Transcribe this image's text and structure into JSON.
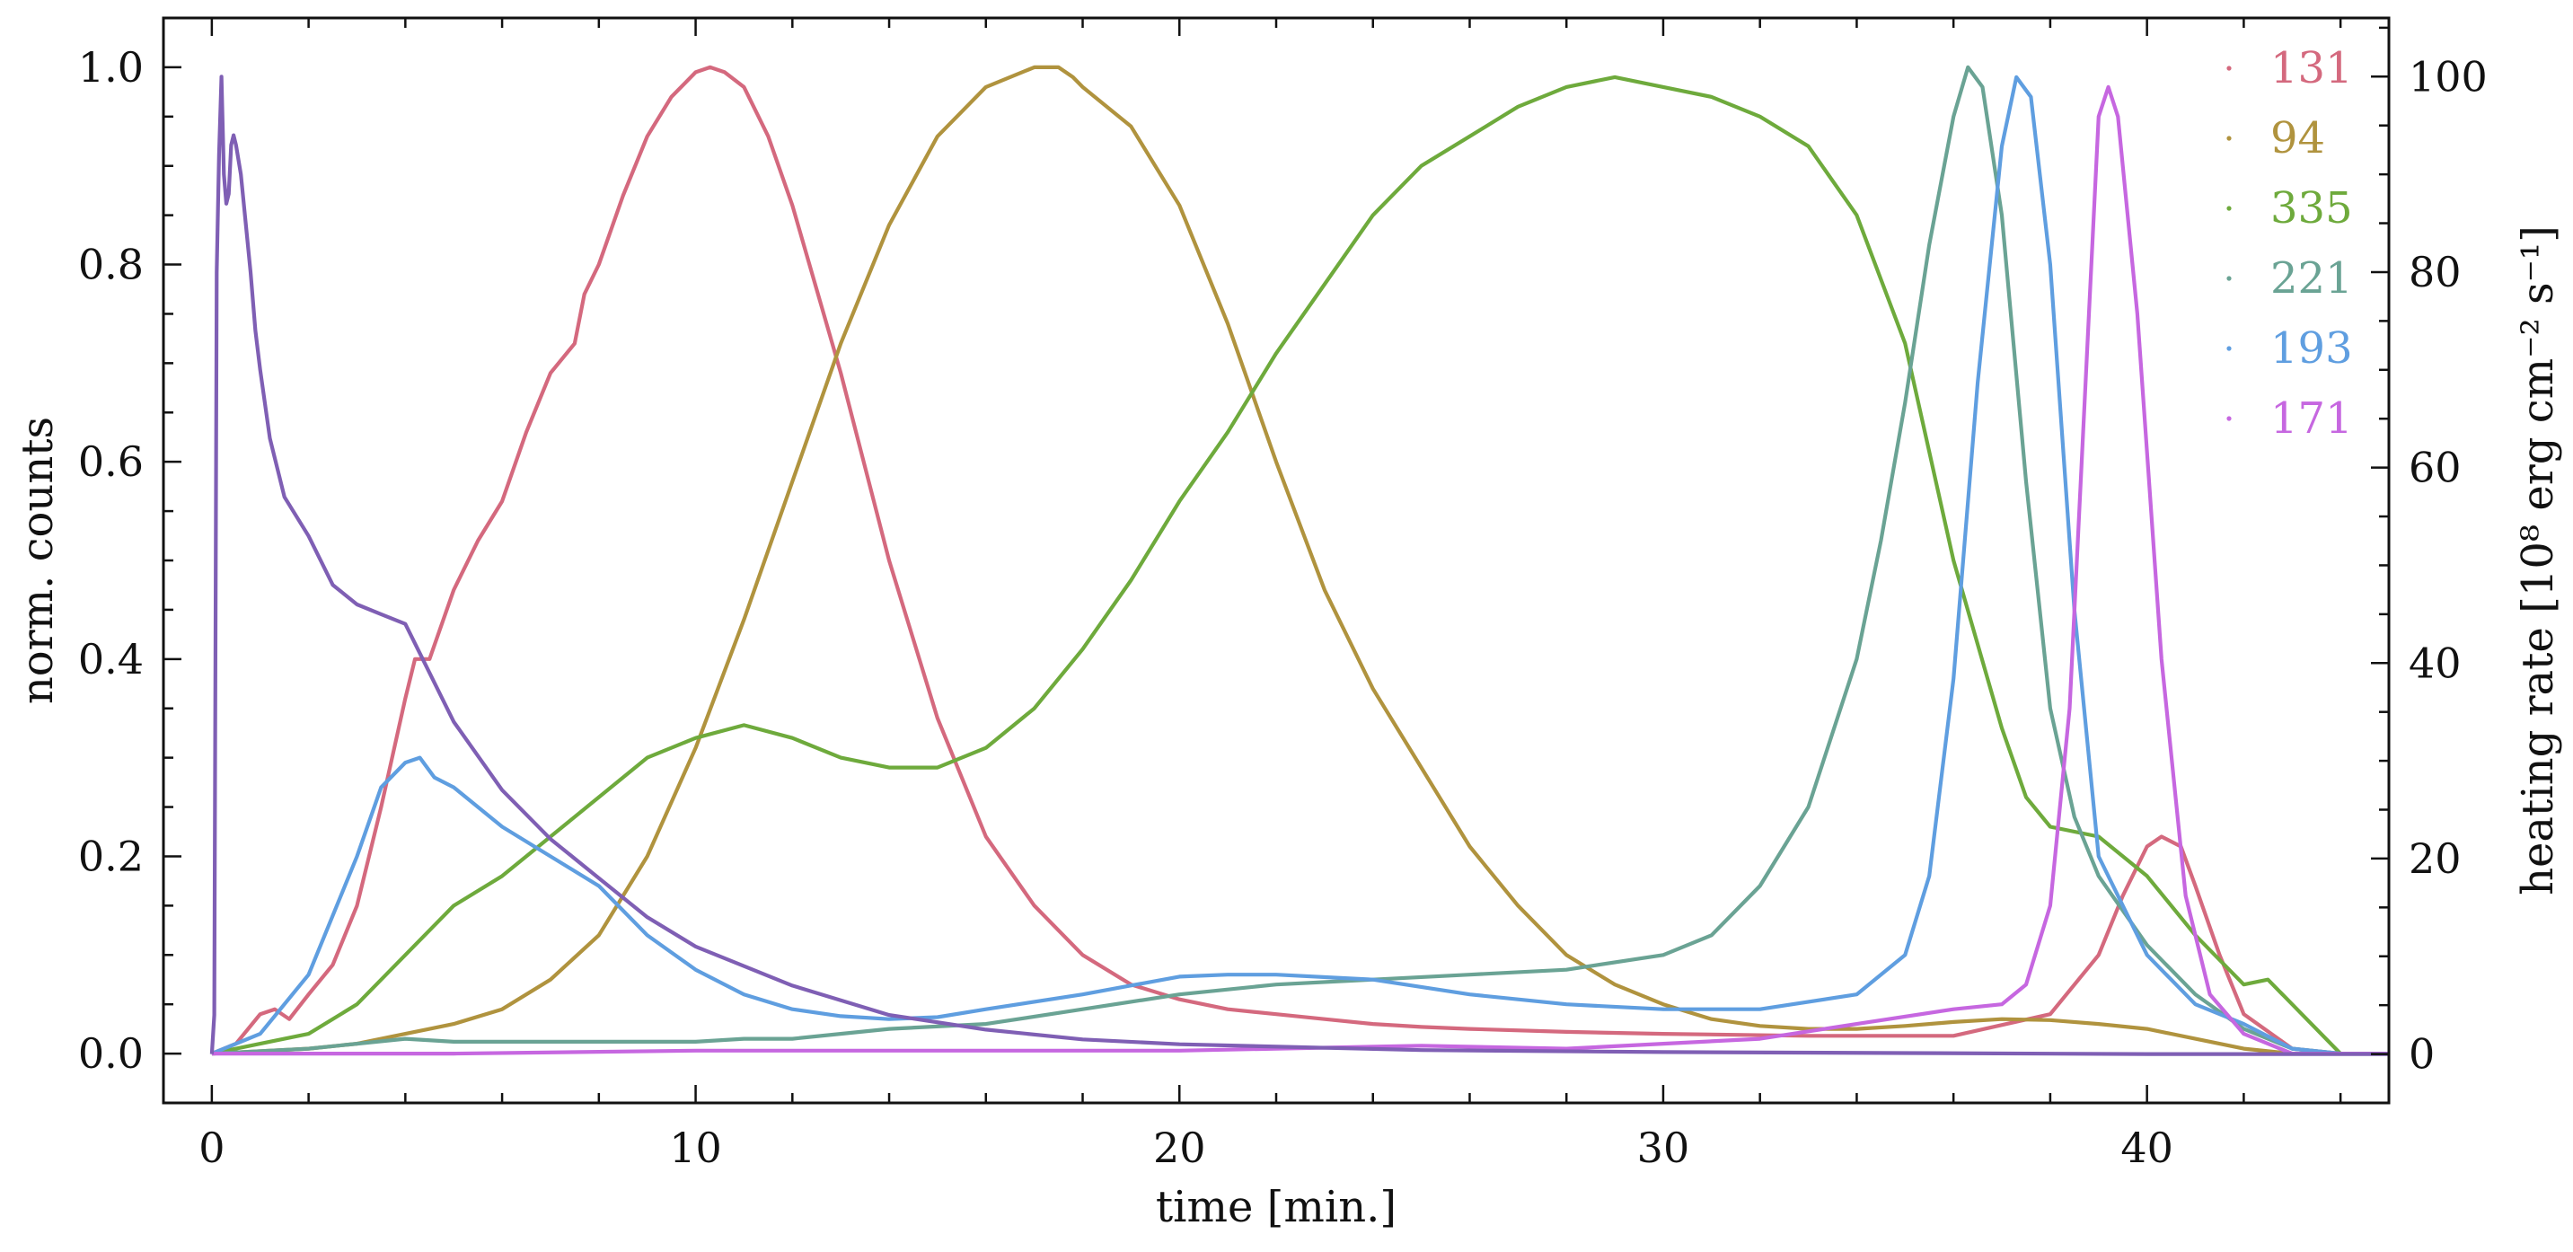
{
  "chart_data": {
    "type": "line",
    "title": "",
    "xlabel": "time [min.]",
    "ylabel": "norm. counts",
    "y2label": "heating rate [10⁸ erg cm⁻² s⁻¹]",
    "xlim": [
      -1,
      45
    ],
    "ylim": [
      -0.05,
      1.05
    ],
    "y2lim": [
      -5,
      106
    ],
    "xticks": [
      0,
      10,
      20,
      30,
      40
    ],
    "xtick_labels": [
      "0",
      "10",
      "20",
      "30",
      "40"
    ],
    "yticks": [
      0.0,
      0.2,
      0.4,
      0.6,
      0.8,
      1.0
    ],
    "ytick_labels": [
      "0.0",
      "0.2",
      "0.4",
      "0.6",
      "0.8",
      "1.0"
    ],
    "y2ticks": [
      0,
      20,
      40,
      60,
      80,
      100
    ],
    "y2tick_labels": [
      "0",
      "20",
      "40",
      "60",
      "80",
      "100"
    ],
    "grid": false,
    "legend_position": "top-right",
    "heating_color": "#7f5fb4",
    "series": [
      {
        "name": "131",
        "color": "#d4697e",
        "x": [
          0,
          0.5,
          1,
          1.3,
          1.6,
          2,
          2.5,
          3,
          3.5,
          4,
          4.2,
          4.5,
          5,
          5.5,
          6,
          6.5,
          7,
          7.5,
          7.7,
          8,
          8.5,
          9,
          9.5,
          10,
          10.3,
          10.6,
          11,
          11.5,
          12,
          13,
          14,
          15,
          16,
          17,
          18,
          19,
          20,
          21,
          22,
          23,
          24,
          25,
          26,
          28,
          30,
          33,
          36,
          38,
          39,
          39.5,
          40,
          40.3,
          40.7,
          41,
          41.5,
          42,
          43,
          44,
          45
        ],
        "y": [
          0,
          0.01,
          0.04,
          0.045,
          0.035,
          0.06,
          0.09,
          0.15,
          0.25,
          0.36,
          0.4,
          0.4,
          0.47,
          0.52,
          0.56,
          0.63,
          0.69,
          0.72,
          0.77,
          0.8,
          0.87,
          0.93,
          0.97,
          0.995,
          1.0,
          0.995,
          0.98,
          0.93,
          0.86,
          0.69,
          0.5,
          0.34,
          0.22,
          0.15,
          0.1,
          0.07,
          0.055,
          0.045,
          0.04,
          0.035,
          0.03,
          0.027,
          0.025,
          0.022,
          0.02,
          0.018,
          0.018,
          0.04,
          0.1,
          0.16,
          0.21,
          0.22,
          0.21,
          0.17,
          0.1,
          0.04,
          0.005,
          0,
          0
        ]
      },
      {
        "name": "94",
        "color": "#b0933e",
        "x": [
          0,
          2,
          3,
          4,
          5,
          6,
          7,
          8,
          9,
          10,
          11,
          12,
          13,
          14,
          15,
          16,
          17,
          17.5,
          17.8,
          18,
          19,
          20,
          21,
          22,
          23,
          24,
          25,
          26,
          27,
          28,
          29,
          30,
          31,
          32,
          33,
          34,
          35,
          36,
          37,
          38,
          39,
          40,
          41,
          42,
          43,
          45
        ],
        "y": [
          0,
          0.005,
          0.01,
          0.02,
          0.03,
          0.045,
          0.075,
          0.12,
          0.2,
          0.31,
          0.44,
          0.58,
          0.72,
          0.84,
          0.93,
          0.98,
          1.0,
          1.0,
          0.99,
          0.98,
          0.94,
          0.86,
          0.74,
          0.6,
          0.47,
          0.37,
          0.29,
          0.21,
          0.15,
          0.1,
          0.07,
          0.05,
          0.035,
          0.028,
          0.025,
          0.025,
          0.028,
          0.032,
          0.035,
          0.034,
          0.03,
          0.025,
          0.015,
          0.005,
          0,
          0
        ]
      },
      {
        "name": "335",
        "color": "#6eaa3c",
        "x": [
          0,
          1,
          2,
          3,
          4,
          5,
          6,
          7,
          8,
          9,
          10,
          11,
          12,
          13,
          14,
          15,
          16,
          17,
          18,
          19,
          20,
          21,
          22,
          23,
          24,
          25,
          26,
          27,
          28,
          29,
          30,
          31,
          32,
          33,
          34,
          35,
          36,
          37,
          37.5,
          38,
          39,
          40,
          41,
          42,
          42.5,
          43,
          44,
          45
        ],
        "y": [
          0,
          0.01,
          0.02,
          0.05,
          0.1,
          0.15,
          0.18,
          0.22,
          0.26,
          0.3,
          0.32,
          0.333,
          0.32,
          0.3,
          0.29,
          0.29,
          0.31,
          0.35,
          0.41,
          0.48,
          0.56,
          0.63,
          0.71,
          0.78,
          0.85,
          0.9,
          0.93,
          0.96,
          0.98,
          0.99,
          0.98,
          0.97,
          0.95,
          0.92,
          0.85,
          0.72,
          0.5,
          0.33,
          0.26,
          0.23,
          0.22,
          0.18,
          0.12,
          0.07,
          0.075,
          0.05,
          0,
          0
        ]
      },
      {
        "name": "221",
        "color": "#6aa394",
        "x": [
          0,
          2,
          3,
          4,
          5,
          6,
          8,
          10,
          11,
          12,
          14,
          16,
          18,
          20,
          22,
          24,
          26,
          28,
          30,
          31,
          32,
          33,
          34,
          34.5,
          35,
          35.5,
          36,
          36.3,
          36.6,
          37,
          37.5,
          38,
          38.5,
          39,
          40,
          41,
          42,
          43,
          44,
          45
        ],
        "y": [
          0,
          0.005,
          0.01,
          0.015,
          0.012,
          0.012,
          0.012,
          0.012,
          0.015,
          0.015,
          0.025,
          0.03,
          0.045,
          0.06,
          0.07,
          0.075,
          0.08,
          0.085,
          0.1,
          0.12,
          0.17,
          0.25,
          0.4,
          0.52,
          0.66,
          0.82,
          0.95,
          1.0,
          0.98,
          0.85,
          0.58,
          0.35,
          0.24,
          0.18,
          0.11,
          0.06,
          0.025,
          0.005,
          0,
          0
        ]
      },
      {
        "name": "193",
        "color": "#5f9ee0",
        "x": [
          0,
          1,
          2,
          3,
          3.5,
          4,
          4.3,
          4.6,
          5,
          6,
          7,
          8,
          9,
          10,
          11,
          12,
          13,
          14,
          15,
          16,
          18,
          20,
          21,
          22,
          24,
          26,
          28,
          30,
          32,
          34,
          35,
          35.5,
          36,
          36.5,
          37,
          37.3,
          37.6,
          38,
          38.5,
          39,
          40,
          41,
          42,
          43,
          44,
          45
        ],
        "y": [
          0,
          0.02,
          0.08,
          0.2,
          0.27,
          0.295,
          0.3,
          0.28,
          0.27,
          0.23,
          0.2,
          0.17,
          0.12,
          0.085,
          0.06,
          0.045,
          0.038,
          0.035,
          0.037,
          0.045,
          0.06,
          0.078,
          0.08,
          0.08,
          0.075,
          0.06,
          0.05,
          0.045,
          0.045,
          0.06,
          0.1,
          0.18,
          0.38,
          0.68,
          0.92,
          0.99,
          0.97,
          0.8,
          0.45,
          0.2,
          0.1,
          0.05,
          0.03,
          0.005,
          0,
          0
        ]
      },
      {
        "name": "171",
        "color": "#c667e0",
        "x": [
          0,
          5,
          10,
          15,
          20,
          25,
          28,
          30,
          32,
          34,
          36,
          37,
          37.5,
          38,
          38.4,
          38.8,
          39,
          39.2,
          39.4,
          39.8,
          40.3,
          40.8,
          41.3,
          42,
          43,
          45
        ],
        "y": [
          0,
          0,
          0.003,
          0.003,
          0.003,
          0.008,
          0.005,
          0.01,
          0.015,
          0.03,
          0.045,
          0.05,
          0.07,
          0.15,
          0.35,
          0.75,
          0.95,
          0.98,
          0.95,
          0.75,
          0.4,
          0.16,
          0.06,
          0.02,
          0,
          0
        ]
      }
    ],
    "heating": {
      "name": "heating rate",
      "x": [
        0,
        0.05,
        0.1,
        0.15,
        0.2,
        0.25,
        0.3,
        0.35,
        0.4,
        0.45,
        0.5,
        0.6,
        0.7,
        0.8,
        0.9,
        1,
        1.2,
        1.5,
        2,
        2.5,
        3,
        3.5,
        4,
        4.5,
        5,
        6,
        7,
        8,
        9,
        10,
        12,
        14,
        16,
        18,
        20,
        25,
        30,
        35,
        40,
        45
      ],
      "y": [
        0,
        4,
        80,
        92,
        100,
        90,
        87,
        88,
        93,
        94,
        93,
        90,
        85,
        80,
        74,
        70,
        63,
        57,
        53,
        48,
        46,
        45,
        44,
        39,
        34,
        27,
        22,
        18,
        14,
        11,
        7,
        4,
        2.5,
        1.5,
        1,
        0.4,
        0.2,
        0.1,
        0,
        0
      ]
    }
  }
}
